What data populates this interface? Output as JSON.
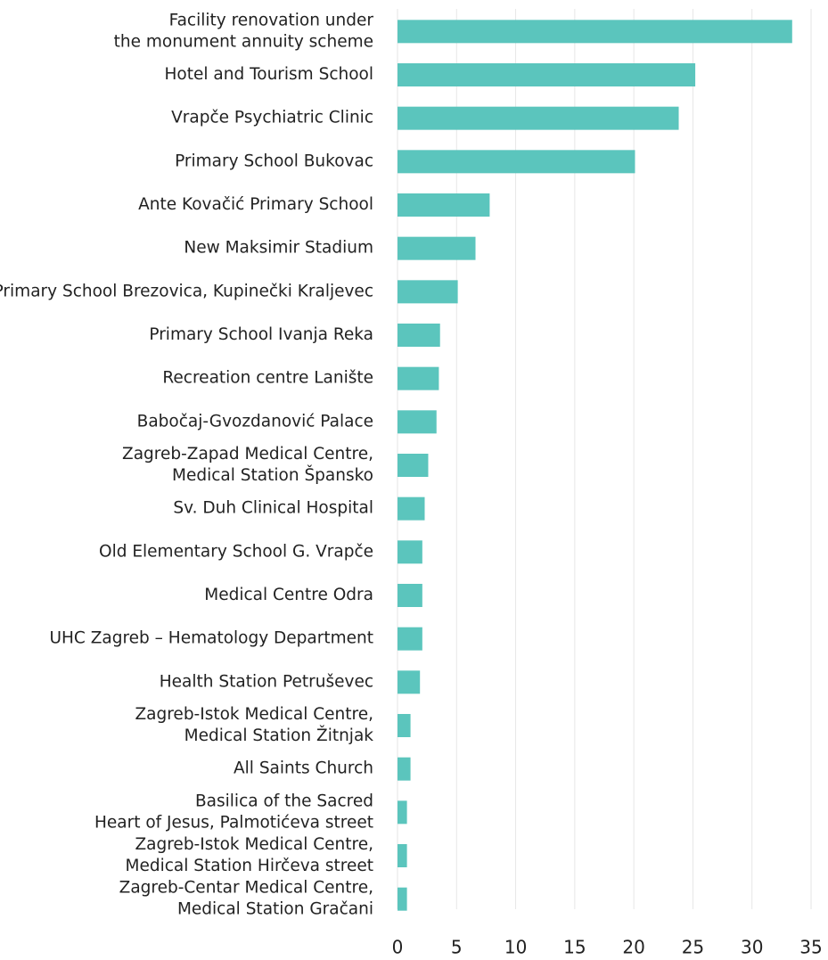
{
  "chart_data": {
    "type": "barh",
    "categories": [
      "Facility renovation under\nthe monument annuity scheme",
      "Hotel and Tourism School",
      "Vrapče Psychiatric Clinic",
      "Primary School Bukovac",
      "Ante Kovačić Primary School",
      "New Maksimir Stadium",
      "Primary School Brezovica, Kupinečki Kraljevec",
      "Primary School Ivanja Reka",
      "Recreation centre Lanište",
      "Babočaj-Gvozdanović Palace",
      "Zagreb-Zapad Medical Centre,\nMedical Station Špansko",
      "Sv. Duh Clinical Hospital",
      "Old Elementary School G. Vrapče",
      "Medical Centre Odra",
      "UHC  Zagreb – Hematology Department",
      "Health Station Petruševec",
      "Zagreb-Istok Medical Centre,\nMedical Station Žitnjak",
      "All Saints Church",
      "Basilica of the Sacred\nHeart of Jesus, Palmotićeva street",
      "Zagreb-Istok Medical Centre,\nMedical Station Hirčeva street",
      "Zagreb-Centar Medical Centre,\nMedical Station Gračani"
    ],
    "values": [
      33.4,
      25.2,
      23.8,
      20.1,
      7.8,
      6.6,
      5.1,
      3.6,
      3.5,
      3.3,
      2.6,
      2.3,
      2.1,
      2.1,
      2.1,
      1.9,
      1.1,
      1.1,
      0.8,
      0.8,
      0.8
    ],
    "color": "#5bc5bd",
    "xlim": [
      0,
      35
    ],
    "xticks": [
      0,
      5,
      10,
      15,
      20,
      25,
      30,
      35
    ],
    "grid": true
  }
}
